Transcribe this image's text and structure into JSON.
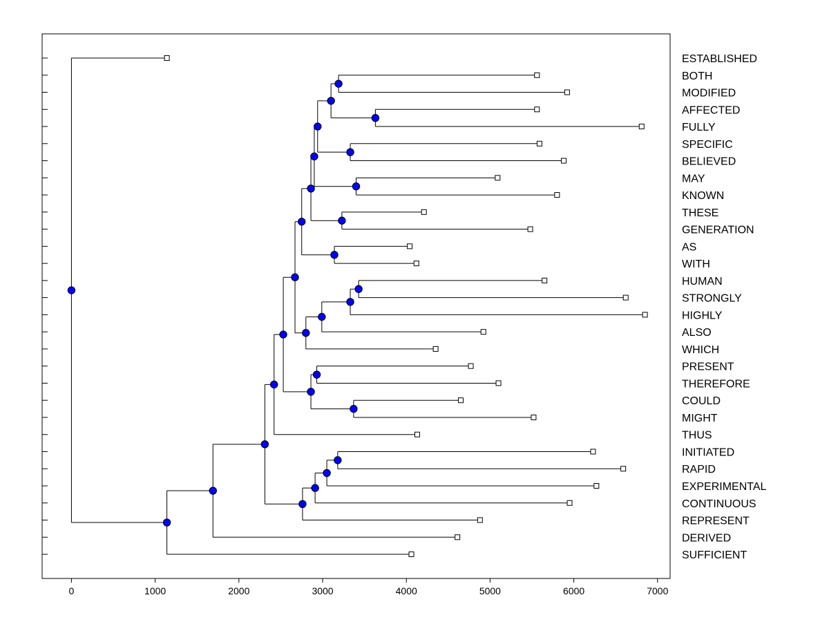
{
  "chart_data": {
    "type": "dendrogram",
    "orientation": "horizontal",
    "title": "",
    "xlabel": "",
    "ylabel": "",
    "xlim": [
      -350,
      7150
    ],
    "xticks": [
      0,
      1000,
      2000,
      3000,
      4000,
      5000,
      6000,
      7000
    ],
    "xtick_labels": [
      "0",
      "1000",
      "2000",
      "3000",
      "4000",
      "5000",
      "6000",
      "7000"
    ],
    "colors": {
      "node": "#0000ff",
      "line": "#000000",
      "leaf": "#ffffff"
    },
    "leaves": [
      {
        "label": "ESTABLISHED",
        "value": 1140
      },
      {
        "label": "BOTH",
        "value": 5560
      },
      {
        "label": "MODIFIED",
        "value": 5920
      },
      {
        "label": "AFFECTED",
        "value": 5560
      },
      {
        "label": "FULLY",
        "value": 6810
      },
      {
        "label": "SPECIFIC",
        "value": 5590
      },
      {
        "label": "BELIEVED",
        "value": 5880
      },
      {
        "label": "MAY",
        "value": 5090
      },
      {
        "label": "KNOWN",
        "value": 5800
      },
      {
        "label": "THESE",
        "value": 4210
      },
      {
        "label": "GENERATION",
        "value": 5480
      },
      {
        "label": "AS",
        "value": 4040
      },
      {
        "label": "WITH",
        "value": 4120
      },
      {
        "label": "HUMAN",
        "value": 5650
      },
      {
        "label": "STRONGLY",
        "value": 6620
      },
      {
        "label": "HIGHLY",
        "value": 6850
      },
      {
        "label": "ALSO",
        "value": 4920
      },
      {
        "label": "WHICH",
        "value": 4350
      },
      {
        "label": "PRESENT",
        "value": 4770
      },
      {
        "label": "THEREFORE",
        "value": 5100
      },
      {
        "label": "COULD",
        "value": 4650
      },
      {
        "label": "MIGHT",
        "value": 5520
      },
      {
        "label": "THUS",
        "value": 4130
      },
      {
        "label": "INITIATED",
        "value": 6230
      },
      {
        "label": "RAPID",
        "value": 6590
      },
      {
        "label": "EXPERIMENTAL",
        "value": 6270
      },
      {
        "label": "CONTINUOUS",
        "value": 5950
      },
      {
        "label": "REPRESENT",
        "value": 4880
      },
      {
        "label": "DERIVED",
        "value": 4610
      },
      {
        "label": "SUFFICIENT",
        "value": 4060
      }
    ],
    "tree": {
      "height": 0,
      "children": [
        {
          "leaf": 0
        },
        {
          "height": 1140,
          "children": [
            {
              "height": 1690,
              "children": [
                {
                  "height": 2310,
                  "children": [
                    {
                      "height": 2420,
                      "children": [
                        {
                          "height": 2530,
                          "children": [
                            {
                              "height": 2670,
                              "children": [
                                {
                                  "height": 2750,
                                  "children": [
                                    {
                                      "height": 2860,
                                      "children": [
                                        {
                                          "height": 2900,
                                          "children": [
                                            {
                                              "height": 2940,
                                              "children": [
                                                {
                                                  "height": 3100,
                                                  "children": [
                                                    {
                                                      "height": 3190,
                                                      "children": [
                                                        {
                                                          "leaf": 1
                                                        },
                                                        {
                                                          "leaf": 2
                                                        }
                                                      ]
                                                    },
                                                    {
                                                      "height": 3630,
                                                      "children": [
                                                        {
                                                          "leaf": 3
                                                        },
                                                        {
                                                          "leaf": 4
                                                        }
                                                      ]
                                                    }
                                                  ]
                                                },
                                                {
                                                  "height": 3330,
                                                  "children": [
                                                    {
                                                      "leaf": 5
                                                    },
                                                    {
                                                      "leaf": 6
                                                    }
                                                  ]
                                                }
                                              ]
                                            },
                                            {
                                              "height": 3400,
                                              "children": [
                                                {
                                                  "leaf": 7
                                                },
                                                {
                                                  "leaf": 8
                                                }
                                              ]
                                            }
                                          ]
                                        },
                                        {
                                          "height": 3230,
                                          "children": [
                                            {
                                              "leaf": 9
                                            },
                                            {
                                              "leaf": 10
                                            }
                                          ]
                                        }
                                      ]
                                    },
                                    {
                                      "height": 3140,
                                      "children": [
                                        {
                                          "leaf": 11
                                        },
                                        {
                                          "leaf": 12
                                        }
                                      ]
                                    }
                                  ]
                                },
                                {
                                  "height": 2800,
                                  "children": [
                                    {
                                      "height": 2990,
                                      "children": [
                                        {
                                          "height": 3330,
                                          "children": [
                                            {
                                              "height": 3430,
                                              "children": [
                                                {
                                                  "leaf": 13
                                                },
                                                {
                                                  "leaf": 14
                                                }
                                              ]
                                            },
                                            {
                                              "leaf": 15
                                            }
                                          ]
                                        },
                                        {
                                          "leaf": 16
                                        }
                                      ]
                                    },
                                    {
                                      "leaf": 17
                                    }
                                  ]
                                }
                              ]
                            },
                            {
                              "height": 2860,
                              "children": [
                                {
                                  "height": 2930,
                                  "children": [
                                    {
                                      "leaf": 18
                                    },
                                    {
                                      "leaf": 19
                                    }
                                  ]
                                },
                                {
                                  "height": 3370,
                                  "children": [
                                    {
                                      "leaf": 20
                                    },
                                    {
                                      "leaf": 21
                                    }
                                  ]
                                }
                              ]
                            }
                          ]
                        },
                        {
                          "leaf": 22
                        }
                      ]
                    },
                    {
                      "height": 2760,
                      "children": [
                        {
                          "height": 2910,
                          "children": [
                            {
                              "height": 3050,
                              "children": [
                                {
                                  "height": 3180,
                                  "children": [
                                    {
                                      "leaf": 23
                                    },
                                    {
                                      "leaf": 24
                                    }
                                  ]
                                },
                                {
                                  "leaf": 25
                                }
                              ]
                            },
                            {
                              "leaf": 26
                            }
                          ]
                        },
                        {
                          "leaf": 27
                        }
                      ]
                    }
                  ]
                },
                {
                  "leaf": 28
                }
              ]
            },
            {
              "leaf": 29
            }
          ]
        }
      ]
    }
  }
}
